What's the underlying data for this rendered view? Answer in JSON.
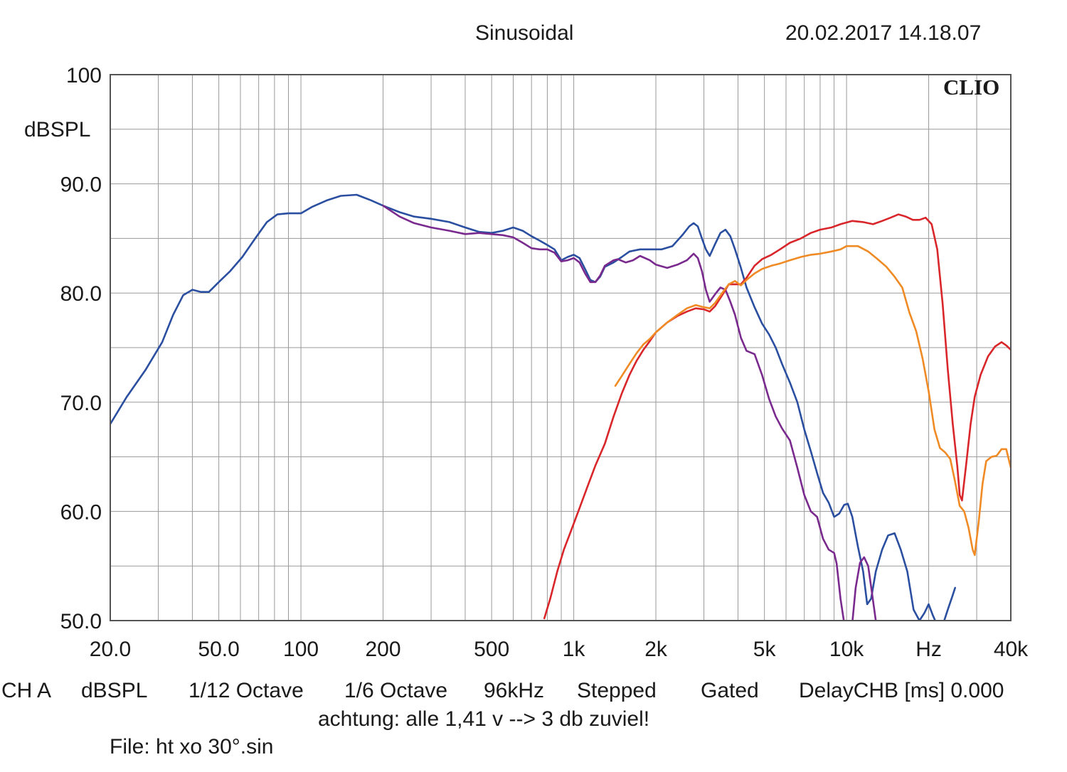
{
  "header": {
    "mode": "Sinusoidal",
    "datetime": "20.02.2017 14.18.07"
  },
  "brand": "CLIO",
  "footer": {
    "settings": [
      "CH A",
      "dBSPL",
      "1/12 Octave",
      "1/6 Octave",
      "96kHz",
      "Stepped",
      "Gated",
      "DelayCHB [ms] 0.000"
    ],
    "note": "achtung: alle 1,41 v --> 3 db zuviel!",
    "file": "File: ht xo 30°.sin"
  },
  "chart_data": {
    "type": "line",
    "title": "",
    "xlabel": "Hz",
    "ylabel": "dBSPL",
    "x_scale": "log",
    "xlim": [
      20,
      40000
    ],
    "ylim": [
      50,
      100
    ],
    "grid": true,
    "legend": "none",
    "x_tick_labels": [
      {
        "value": 20,
        "label": "20.0"
      },
      {
        "value": 50,
        "label": "50.0"
      },
      {
        "value": 100,
        "label": "100"
      },
      {
        "value": 200,
        "label": "200"
      },
      {
        "value": 500,
        "label": "500"
      },
      {
        "value": 1000,
        "label": "1k"
      },
      {
        "value": 2000,
        "label": "2k"
      },
      {
        "value": 5000,
        "label": "5k"
      },
      {
        "value": 10000,
        "label": "10k"
      },
      {
        "value": 20000,
        "label": "Hz"
      },
      {
        "value": 40000,
        "label": "40k"
      }
    ],
    "y_tick_labels": [
      {
        "value": 100,
        "label": "100"
      },
      {
        "value": 90,
        "label": "90.0"
      },
      {
        "value": 80,
        "label": "80.0"
      },
      {
        "value": 70,
        "label": "70.0"
      },
      {
        "value": 60,
        "label": "60.0"
      },
      {
        "value": 50,
        "label": "50.0"
      }
    ],
    "series": [
      {
        "color": "#2b4fa0",
        "points": [
          [
            20,
            68
          ],
          [
            23,
            70.5
          ],
          [
            27,
            73
          ],
          [
            31,
            75.5
          ],
          [
            34,
            78
          ],
          [
            37,
            79.8
          ],
          [
            40,
            80.3
          ],
          [
            43,
            80.1
          ],
          [
            46,
            80.1
          ],
          [
            50,
            81
          ],
          [
            55,
            82
          ],
          [
            61,
            83.3
          ],
          [
            68,
            85
          ],
          [
            75,
            86.5
          ],
          [
            82,
            87.2
          ],
          [
            90,
            87.3
          ],
          [
            100,
            87.3
          ],
          [
            110,
            87.9
          ],
          [
            125,
            88.5
          ],
          [
            140,
            88.9
          ],
          [
            160,
            89
          ],
          [
            180,
            88.5
          ],
          [
            200,
            88
          ],
          [
            230,
            87.4
          ],
          [
            260,
            87
          ],
          [
            300,
            86.8
          ],
          [
            350,
            86.5
          ],
          [
            400,
            86
          ],
          [
            450,
            85.6
          ],
          [
            500,
            85.5
          ],
          [
            550,
            85.7
          ],
          [
            600,
            86
          ],
          [
            650,
            85.7
          ],
          [
            700,
            85.2
          ],
          [
            750,
            84.8
          ],
          [
            800,
            84.4
          ],
          [
            850,
            84
          ],
          [
            900,
            83
          ],
          [
            950,
            83.3
          ],
          [
            1000,
            83.5
          ],
          [
            1050,
            83.2
          ],
          [
            1100,
            82.2
          ],
          [
            1150,
            81.2
          ],
          [
            1200,
            81
          ],
          [
            1250,
            81.5
          ],
          [
            1300,
            82.4
          ],
          [
            1400,
            82.8
          ],
          [
            1500,
            83.3
          ],
          [
            1600,
            83.8
          ],
          [
            1750,
            84
          ],
          [
            1900,
            84
          ],
          [
            2100,
            84
          ],
          [
            2300,
            84.3
          ],
          [
            2500,
            85.3
          ],
          [
            2650,
            86.1
          ],
          [
            2750,
            86.4
          ],
          [
            2850,
            86.1
          ],
          [
            2950,
            85
          ],
          [
            3050,
            84
          ],
          [
            3150,
            83.4
          ],
          [
            3300,
            84.5
          ],
          [
            3450,
            85.5
          ],
          [
            3600,
            85.8
          ],
          [
            3750,
            85.2
          ],
          [
            3900,
            84
          ],
          [
            4100,
            82.3
          ],
          [
            4300,
            80.5
          ],
          [
            4600,
            78.7
          ],
          [
            4900,
            77.2
          ],
          [
            5200,
            76.2
          ],
          [
            5500,
            75
          ],
          [
            5800,
            73.5
          ],
          [
            6200,
            71.8
          ],
          [
            6600,
            70
          ],
          [
            7000,
            67.5
          ],
          [
            7400,
            65.5
          ],
          [
            7800,
            63.5
          ],
          [
            8200,
            61.7
          ],
          [
            8600,
            60.8
          ],
          [
            9000,
            59.5
          ],
          [
            9400,
            59.8
          ],
          [
            9800,
            60.6
          ],
          [
            10100,
            60.7
          ],
          [
            10500,
            59.5
          ],
          [
            11000,
            56.8
          ],
          [
            11500,
            54.5
          ],
          [
            11900,
            51.5
          ],
          [
            12300,
            52
          ],
          [
            12800,
            54.5
          ],
          [
            13500,
            56.5
          ],
          [
            14200,
            57.8
          ],
          [
            15000,
            58
          ],
          [
            15800,
            56.5
          ],
          [
            16700,
            54.5
          ],
          [
            17600,
            51
          ],
          [
            18500,
            50
          ],
          [
            19300,
            50.7
          ],
          [
            20000,
            51.5
          ],
          [
            20700,
            50.5
          ],
          [
            21300,
            49.8
          ]
        ]
      },
      {
        "color": "#2b4fa0",
        "points": [
          [
            22800,
            50
          ],
          [
            23500,
            51
          ],
          [
            24400,
            52.2
          ],
          [
            25000,
            53
          ]
        ]
      },
      {
        "color": "#7a2a8e",
        "points": [
          [
            200,
            88
          ],
          [
            230,
            87
          ],
          [
            260,
            86.4
          ],
          [
            300,
            86
          ],
          [
            350,
            85.7
          ],
          [
            400,
            85.4
          ],
          [
            450,
            85.5
          ],
          [
            500,
            85.4
          ],
          [
            550,
            85.3
          ],
          [
            600,
            85.1
          ],
          [
            650,
            84.6
          ],
          [
            700,
            84.1
          ],
          [
            750,
            84
          ],
          [
            800,
            84
          ],
          [
            850,
            83.7
          ],
          [
            900,
            82.9
          ],
          [
            950,
            83
          ],
          [
            1000,
            83.2
          ],
          [
            1050,
            82.8
          ],
          [
            1100,
            81.8
          ],
          [
            1150,
            81
          ],
          [
            1200,
            81
          ],
          [
            1250,
            81.6
          ],
          [
            1300,
            82.5
          ],
          [
            1400,
            83
          ],
          [
            1450,
            83.1
          ],
          [
            1550,
            82.8
          ],
          [
            1650,
            83
          ],
          [
            1750,
            83.4
          ],
          [
            1900,
            83
          ],
          [
            2000,
            82.6
          ],
          [
            2200,
            82.3
          ],
          [
            2400,
            82.6
          ],
          [
            2600,
            83
          ],
          [
            2750,
            83.6
          ],
          [
            2850,
            83.2
          ],
          [
            2950,
            82
          ],
          [
            3050,
            80.3
          ],
          [
            3150,
            79.2
          ],
          [
            3300,
            79.9
          ],
          [
            3450,
            80.5
          ],
          [
            3600,
            80.3
          ],
          [
            3750,
            79.2
          ],
          [
            3900,
            78
          ],
          [
            4100,
            75.9
          ],
          [
            4300,
            74.7
          ],
          [
            4600,
            74.4
          ],
          [
            4900,
            72.5
          ],
          [
            5200,
            70.3
          ],
          [
            5500,
            68.7
          ],
          [
            5800,
            67.6
          ],
          [
            6200,
            66.5
          ],
          [
            6600,
            64
          ],
          [
            7000,
            61.5
          ],
          [
            7400,
            60
          ],
          [
            7800,
            59.5
          ],
          [
            8200,
            57.5
          ],
          [
            8600,
            56.5
          ],
          [
            9000,
            56.2
          ],
          [
            9200,
            55.2
          ],
          [
            9500,
            52
          ],
          [
            9800,
            49.8
          ]
        ]
      },
      {
        "color": "#7a2a8e",
        "points": [
          [
            10500,
            49.8
          ],
          [
            10800,
            53
          ],
          [
            11200,
            55.3
          ],
          [
            11600,
            55.8
          ],
          [
            12000,
            55
          ],
          [
            12400,
            52.5
          ],
          [
            12800,
            50
          ]
        ]
      },
      {
        "color": "#d9262a",
        "points": [
          [
            780,
            50.2
          ],
          [
            820,
            52
          ],
          [
            870,
            54.5
          ],
          [
            920,
            56.5
          ],
          [
            980,
            58.3
          ],
          [
            1050,
            60.3
          ],
          [
            1120,
            62.2
          ],
          [
            1200,
            64.2
          ],
          [
            1300,
            66.2
          ],
          [
            1400,
            68.7
          ],
          [
            1500,
            70.8
          ],
          [
            1600,
            72.5
          ],
          [
            1700,
            73.8
          ],
          [
            1800,
            74.8
          ],
          [
            1900,
            75.6
          ],
          [
            2000,
            76.4
          ],
          [
            2200,
            77.3
          ],
          [
            2400,
            77.9
          ],
          [
            2600,
            78.3
          ],
          [
            2800,
            78.6
          ],
          [
            3000,
            78.5
          ],
          [
            3150,
            78.3
          ],
          [
            3300,
            78.8
          ],
          [
            3500,
            79.8
          ],
          [
            3700,
            80.8
          ],
          [
            3900,
            80.8
          ],
          [
            4100,
            80.8
          ],
          [
            4300,
            81.4
          ],
          [
            4600,
            82.5
          ],
          [
            4900,
            83.1
          ],
          [
            5300,
            83.5
          ],
          [
            5700,
            84
          ],
          [
            6200,
            84.6
          ],
          [
            6800,
            85
          ],
          [
            7400,
            85.5
          ],
          [
            8000,
            85.8
          ],
          [
            8800,
            86
          ],
          [
            9500,
            86.3
          ],
          [
            10500,
            86.6
          ],
          [
            11500,
            86.5
          ],
          [
            12500,
            86.3
          ],
          [
            13500,
            86.6
          ],
          [
            14500,
            86.9
          ],
          [
            15500,
            87.2
          ],
          [
            16500,
            87
          ],
          [
            17500,
            86.7
          ],
          [
            18500,
            86.7
          ],
          [
            19500,
            86.9
          ],
          [
            20500,
            86.3
          ],
          [
            21500,
            84
          ],
          [
            22500,
            79
          ],
          [
            23500,
            73
          ],
          [
            24500,
            68
          ],
          [
            25500,
            64
          ],
          [
            26000,
            61.5
          ],
          [
            26500,
            61
          ],
          [
            27500,
            64.5
          ],
          [
            28500,
            68
          ],
          [
            29500,
            70.5
          ],
          [
            31000,
            72.5
          ],
          [
            33000,
            74.2
          ],
          [
            35000,
            75.1
          ],
          [
            37000,
            75.5
          ],
          [
            38500,
            75.2
          ],
          [
            40000,
            74.8
          ]
        ]
      },
      {
        "color": "#ef8a24",
        "points": [
          [
            1420,
            71.5
          ],
          [
            1500,
            72.4
          ],
          [
            1600,
            73.5
          ],
          [
            1700,
            74.5
          ],
          [
            1800,
            75.3
          ],
          [
            1900,
            75.8
          ],
          [
            2000,
            76.4
          ],
          [
            2200,
            77.3
          ],
          [
            2400,
            78
          ],
          [
            2600,
            78.6
          ],
          [
            2800,
            78.9
          ],
          [
            3000,
            78.7
          ],
          [
            3150,
            78.6
          ],
          [
            3300,
            79.1
          ],
          [
            3500,
            80
          ],
          [
            3700,
            80.8
          ],
          [
            3900,
            81.1
          ],
          [
            4100,
            80.7
          ],
          [
            4300,
            81.2
          ],
          [
            4600,
            81.8
          ],
          [
            4900,
            82.2
          ],
          [
            5300,
            82.5
          ],
          [
            5700,
            82.7
          ],
          [
            6200,
            83
          ],
          [
            6800,
            83.3
          ],
          [
            7400,
            83.5
          ],
          [
            8000,
            83.6
          ],
          [
            8800,
            83.8
          ],
          [
            9500,
            84
          ],
          [
            10000,
            84.3
          ],
          [
            10500,
            84.3
          ],
          [
            11000,
            84.3
          ],
          [
            12000,
            83.8
          ],
          [
            13000,
            83.1
          ],
          [
            14000,
            82.4
          ],
          [
            15000,
            81.5
          ],
          [
            16000,
            80.5
          ],
          [
            17000,
            78.2
          ],
          [
            18000,
            76.5
          ],
          [
            19000,
            74
          ],
          [
            20000,
            71
          ],
          [
            21000,
            67.5
          ],
          [
            22000,
            65.8
          ],
          [
            23000,
            65.4
          ],
          [
            24000,
            64.8
          ],
          [
            25000,
            62.7
          ],
          [
            26000,
            60.5
          ],
          [
            27000,
            60
          ],
          [
            28000,
            58.5
          ],
          [
            29000,
            56.5
          ],
          [
            29500,
            56
          ],
          [
            30500,
            59
          ],
          [
            31500,
            62.5
          ],
          [
            32500,
            64.6
          ],
          [
            34000,
            65
          ],
          [
            35500,
            65.1
          ],
          [
            37000,
            65.7
          ],
          [
            38500,
            65.7
          ],
          [
            40000,
            64
          ]
        ]
      }
    ]
  }
}
